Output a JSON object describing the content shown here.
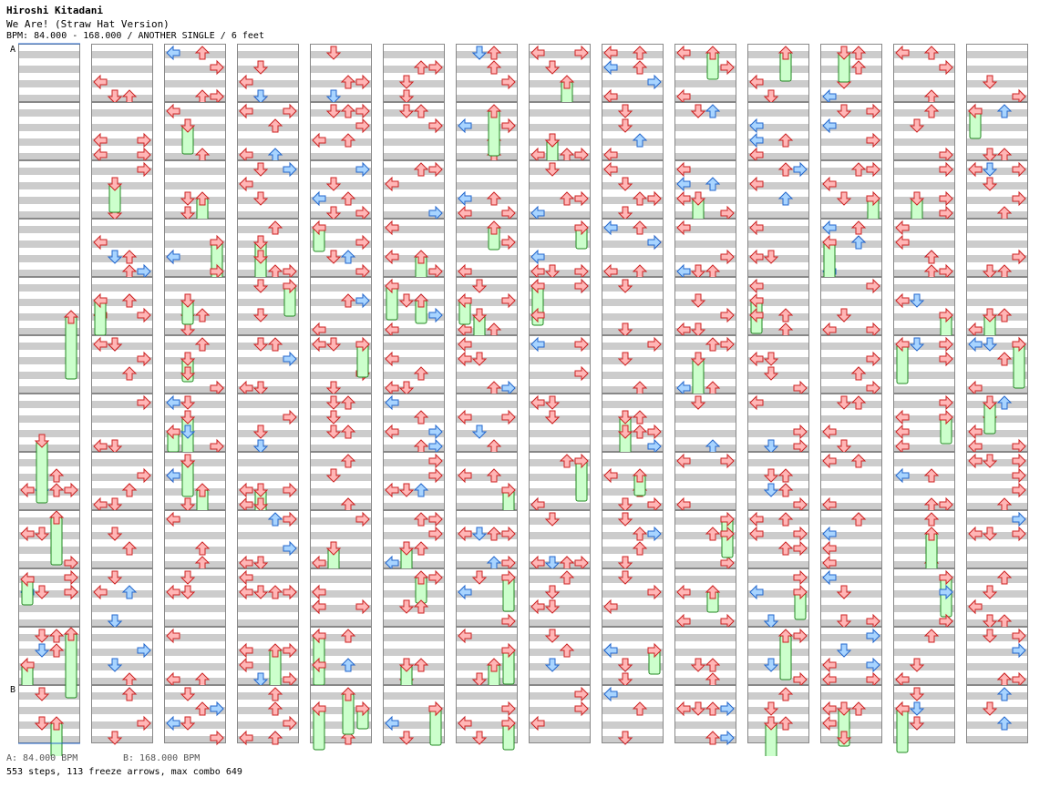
{
  "header": {
    "artist": "Hiroshi Kitadani",
    "title": "We Are! (Straw Hat Version)",
    "info": "BPM: 84.000 - 168.000 / ANOTHER SINGLE / 6 feet"
  },
  "chart": {
    "columns": 14,
    "measures_per_column": 12,
    "total_measures": 168,
    "markers": [
      {
        "label": "A",
        "measure": 0
      },
      {
        "label": "B",
        "measure": 11
      }
    ],
    "colors": {
      "tap_fill": "#ffb6b6",
      "tap_stroke": "#cc2222",
      "quarter_fill": "#a8d4ff",
      "quarter_stroke": "#2266cc",
      "special_fill": "#ffbbff",
      "special_stroke": "#aa22aa",
      "freeze_fill": "#ccffcc",
      "freeze_stroke": "#228822",
      "stripe": "#cccccc",
      "marker_line": "#2266cc"
    }
  },
  "footer": {
    "legend_a": "A: 84.000 BPM",
    "legend_b": "B: 168.000 BPM",
    "stats": "553 steps, 113 freeze arrows, max combo 649"
  }
}
